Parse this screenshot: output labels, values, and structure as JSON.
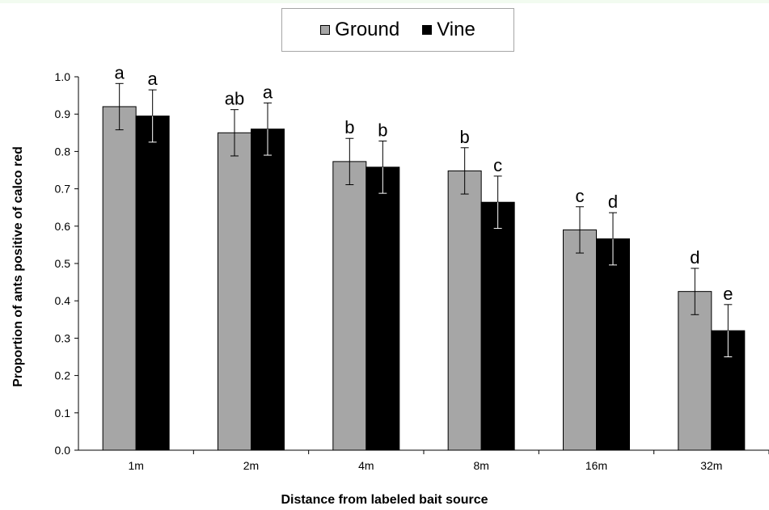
{
  "chart_data": {
    "type": "bar",
    "categories": [
      "1m",
      "2m",
      "4m",
      "8m",
      "16m",
      "32m"
    ],
    "series": [
      {
        "name": "Ground",
        "color": "#a6a6a6",
        "values": [
          0.92,
          0.85,
          0.773,
          0.748,
          0.59,
          0.425
        ],
        "errors": [
          0.062,
          0.062,
          0.062,
          0.062,
          0.062,
          0.062
        ],
        "letters": [
          "a",
          "ab",
          "b",
          "b",
          "c",
          "d"
        ]
      },
      {
        "name": "Vine",
        "color": "#000000",
        "values": [
          0.895,
          0.86,
          0.758,
          0.664,
          0.566,
          0.32
        ],
        "errors": [
          0.07,
          0.07,
          0.07,
          0.07,
          0.07,
          0.07
        ],
        "letters": [
          "a",
          "a",
          "b",
          "c",
          "d",
          "e"
        ]
      }
    ],
    "xlabel": "Distance from labeled bait source",
    "ylabel": "Proportion of ants positive of calco red",
    "ylim": [
      0,
      1
    ],
    "yticks": [
      "0.0",
      "0.1",
      "0.2",
      "0.3",
      "0.4",
      "0.5",
      "0.6",
      "0.7",
      "0.8",
      "0.9",
      "1.0"
    ],
    "grid": false,
    "legend_position": "top-center"
  }
}
